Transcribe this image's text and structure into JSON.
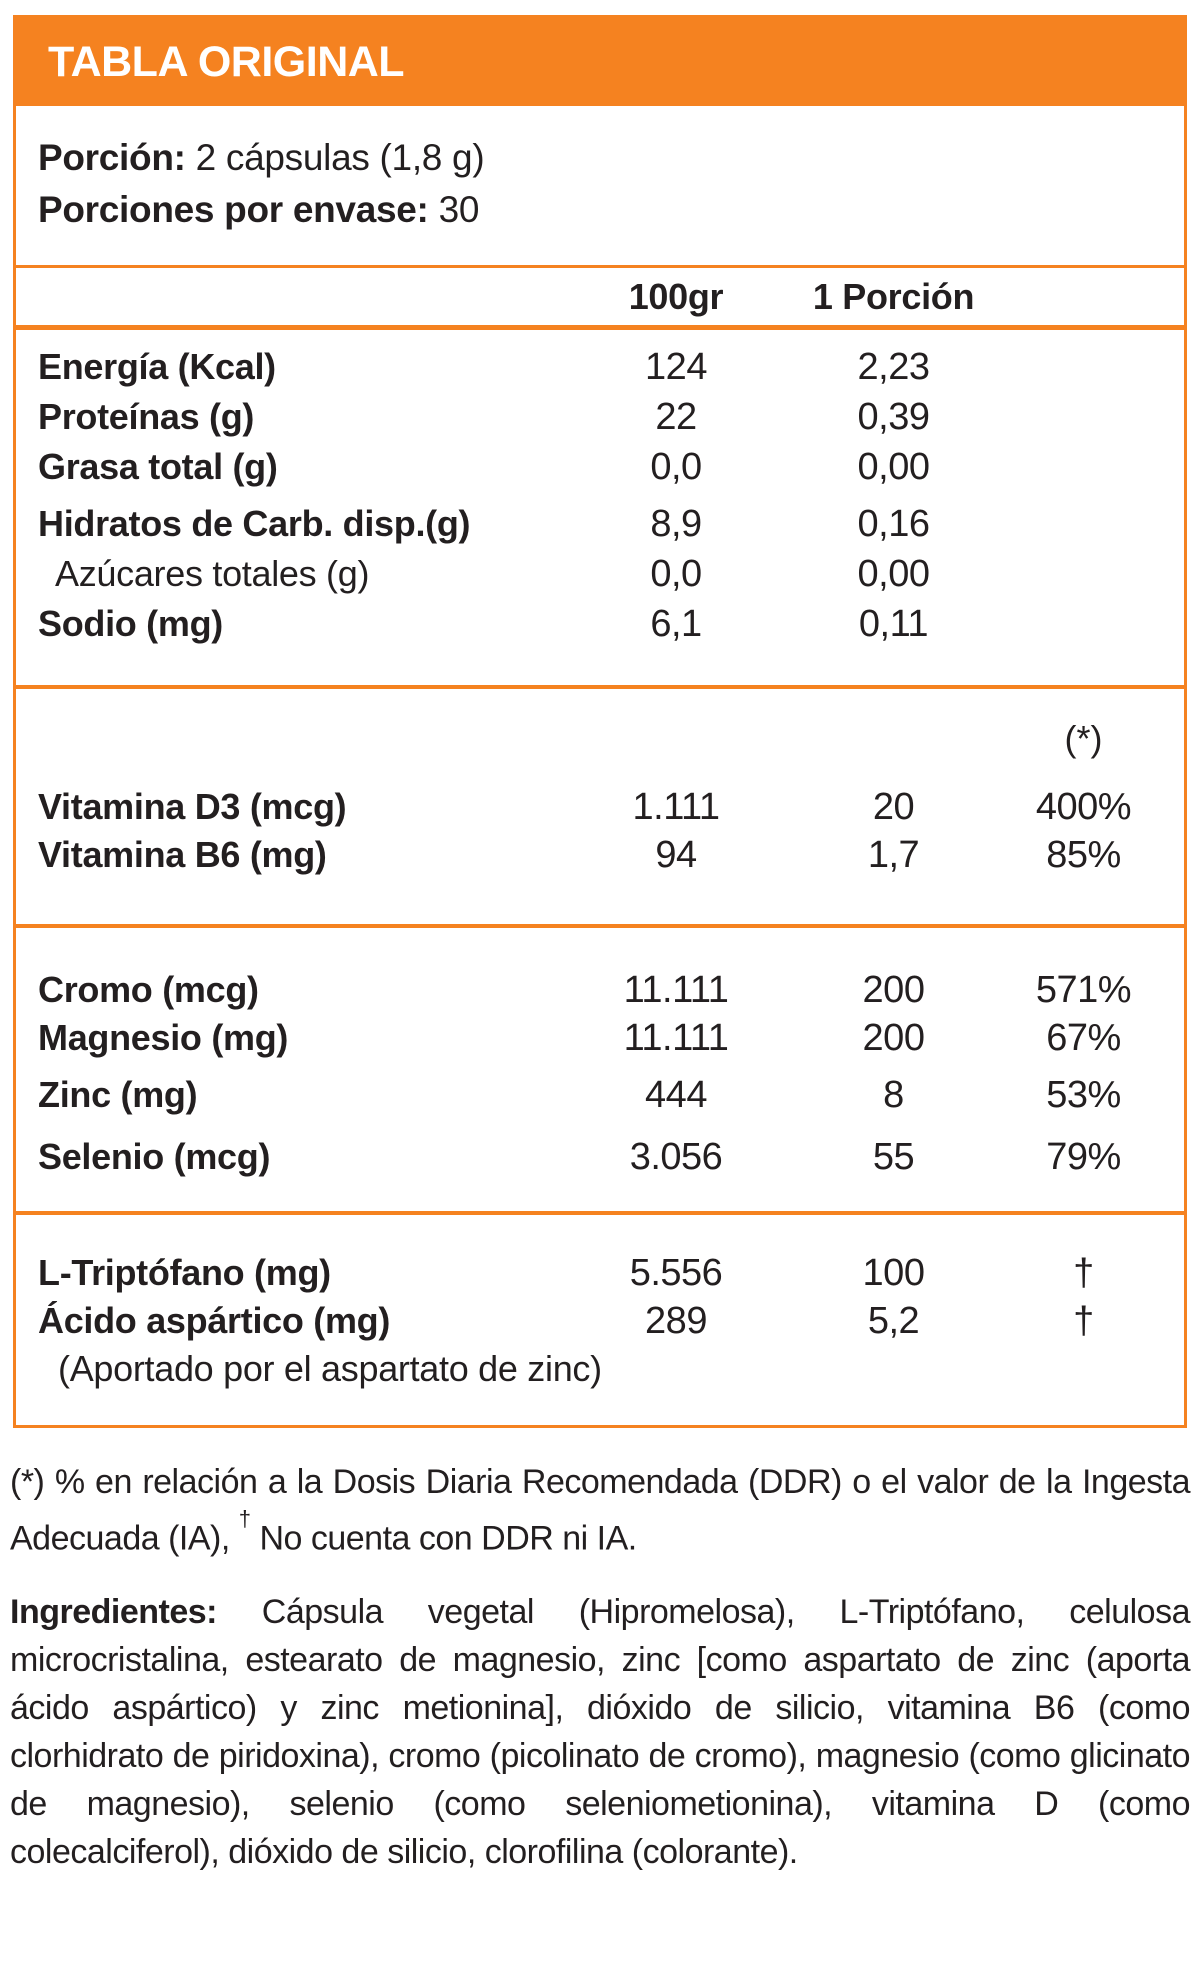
{
  "colors": {
    "accent": "#F58220",
    "text": "#231F20",
    "title_text": "#FFFFFF"
  },
  "header": {
    "title": "TABLA ORIGINAL"
  },
  "serving": {
    "portion_label": "Porción:",
    "portion_value": "2 cápsulas (1,8 g)",
    "servings_label": "Porciones por envase:",
    "servings_value": "30"
  },
  "columns": {
    "per100": "100gr",
    "per_serving": "1 Porción",
    "ddr_header": "(*)"
  },
  "sections": {
    "macros": {
      "rows": [
        {
          "label": "Energía (Kcal)",
          "per100": "124",
          "serving": "2,23"
        },
        {
          "label": "Proteínas (g)",
          "per100": "22",
          "serving": "0,39"
        },
        {
          "label": "Grasa total (g)",
          "per100": "0,0",
          "serving": "0,00"
        },
        {
          "label": "Hidratos de Carb. disp.(g)",
          "per100": "8,9",
          "serving": "0,16"
        },
        {
          "label": "Azúcares totales (g)",
          "per100": "0,0",
          "serving": "0,00"
        },
        {
          "label": "Sodio (mg)",
          "per100": "6,1",
          "serving": "0,11"
        }
      ]
    },
    "vitamins": {
      "rows": [
        {
          "label": "Vitamina D3 (mcg)",
          "per100": "1.111",
          "serving": "20",
          "ddr": "400%"
        },
        {
          "label": "Vitamina B6 (mg)",
          "per100": "94",
          "serving": "1,7",
          "ddr": "85%"
        }
      ]
    },
    "minerals": {
      "rows": [
        {
          "label": "Cromo (mcg)",
          "per100": "11.111",
          "serving": "200",
          "ddr": "571%"
        },
        {
          "label": "Magnesio (mg)",
          "per100": "11.111",
          "serving": "200",
          "ddr": "67%"
        },
        {
          "label": "Zinc (mg)",
          "per100": "444",
          "serving": "8",
          "ddr": "53%"
        },
        {
          "label": "Selenio (mcg)",
          "per100": "3.056",
          "serving": "55",
          "ddr": "79%"
        }
      ]
    },
    "aminos": {
      "rows": [
        {
          "label": "L-Triptófano (mg)",
          "per100": "5.556",
          "serving": "100",
          "ddr": "†"
        },
        {
          "label": "Ácido aspártico (mg)",
          "per100": "289",
          "serving": "5,2",
          "ddr": "†"
        }
      ],
      "note": "(Aportado por el aspartato de zinc)"
    }
  },
  "footnote": {
    "part1": "(*) % en relación a la Dosis Diaria Recomendada (DDR) o el valor de la Ingesta Adecuada (IA),",
    "dagger": "†",
    "part2": "No cuenta con DDR ni IA."
  },
  "ingredients": {
    "label": "Ingredientes:",
    "text": "Cápsula vegetal (Hipromelosa), L-Triptófano, celulosa microcristalina, estearato de magnesio, zinc [como aspartato de zinc (aporta ácido aspártico) y zinc metionina], dióxido de silicio, vitamina B6 (como clorhidrato de piridoxina), cromo (picolinato de cromo), magnesio (como glicinato de magnesio), selenio (como seleniometionina), vitamina D (como colecalciferol), dióxido de silicio, clorofilina (colorante)."
  }
}
